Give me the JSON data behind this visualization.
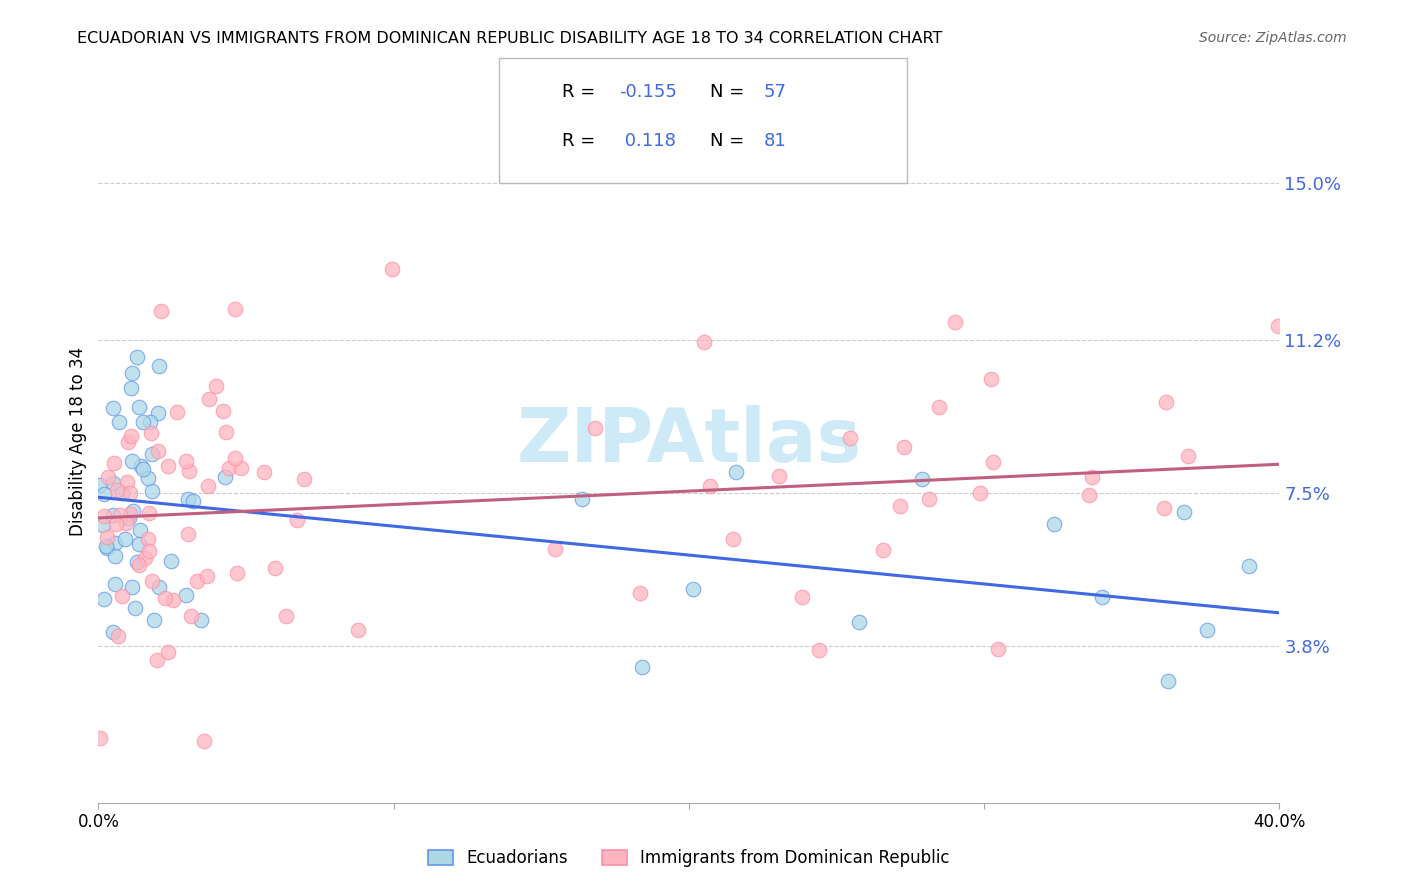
{
  "title": "ECUADORIAN VS IMMIGRANTS FROM DOMINICAN REPUBLIC DISABILITY AGE 18 TO 34 CORRELATION CHART",
  "source": "Source: ZipAtlas.com",
  "ylabel": "Disability Age 18 to 34",
  "xlim": [
    0.0,
    0.4
  ],
  "ylim": [
    0.0,
    0.175
  ],
  "y_ticks_right": [
    0.15,
    0.112,
    0.075,
    0.038
  ],
  "y_tick_labels_right": [
    "15.0%",
    "11.2%",
    "7.5%",
    "3.8%"
  ],
  "color_ecu_face": "#ADD8E6",
  "color_ecu_edge": "#6495ED",
  "color_dom_face": "#FFB6C1",
  "color_dom_edge": "#FF8FA3",
  "color_line_blue": "#4169E1",
  "color_line_pink": "#C06080",
  "color_grid": "#CCCCCC",
  "color_right_tick": "#4169E1",
  "watermark_color": "#C8E8F5",
  "ecu_line_start_y": 0.074,
  "ecu_line_end_y": 0.046,
  "dom_line_start_y": 0.069,
  "dom_line_end_y": 0.082,
  "seed": 17
}
